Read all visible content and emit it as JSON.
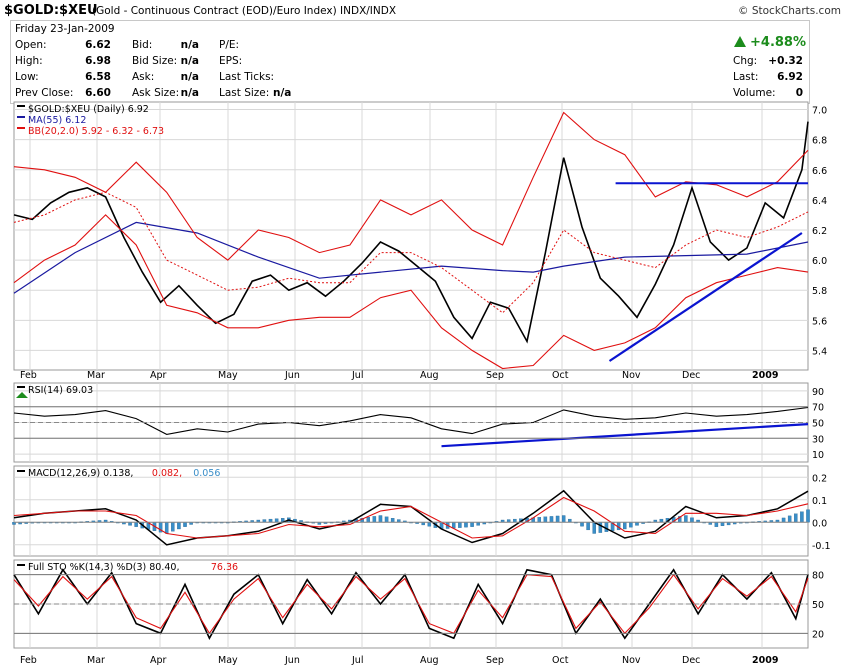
{
  "header": {
    "symbol": "$GOLD:$XEU",
    "description": "(Gold - Continuous Contract (EOD)/Euro Index)  INDX/INDX",
    "source": "© StockCharts.com"
  },
  "quote": {
    "date": "Friday  23-Jan-2009",
    "open_label": "Open:",
    "open": "6.62",
    "high_label": "High:",
    "high": "6.98",
    "low_label": "Low:",
    "low": "6.58",
    "prev_label": "Prev Close:",
    "prev": "6.60",
    "bid_label": "Bid:",
    "bid": "n/a",
    "bidsize_label": "Bid Size:",
    "bidsize": "n/a",
    "ask_label": "Ask:",
    "ask": "n/a",
    "asksize_label": "Ask Size:",
    "asksize": "n/a",
    "pe_label": "P/E:",
    "eps_label": "EPS:",
    "ticks_label": "Last Ticks:",
    "lastsize_label": "Last Size:",
    "lastsize": "n/a",
    "pct": "+4.88%",
    "chg_label": "Chg:",
    "chg": "+0.32",
    "last_label": "Last:",
    "last": "6.92",
    "vol_label": "Volume:",
    "vol": "0"
  },
  "colors": {
    "up": "#1c8c1c",
    "bb": "#e01010",
    "ma": "#1a1aa0",
    "trend": "#0a14d0",
    "rsi": "#000000",
    "hist": "#3a8ec8",
    "grid": "#d8d8d8"
  },
  "chart_data": [
    {
      "type": "line",
      "panel": "price",
      "legend": [
        {
          "text": "$GOLD:$XEU (Daily) 6.92",
          "color": "#000000"
        },
        {
          "text": "MA(55) 6.12",
          "color": "#1a1aa0"
        },
        {
          "text": "BB(20,2.0) 5.92 - 6.32 - 6.73",
          "color": "#e01010"
        }
      ],
      "x_labels": [
        "Feb",
        "Mar",
        "Apr",
        "May",
        "Jun",
        "Jul",
        "Aug",
        "Sep",
        "Oct",
        "Nov",
        "Dec",
        "2009"
      ],
      "y_ticks": [
        "7.0",
        "6.8",
        "6.6",
        "6.4",
        "6.2",
        "6.0",
        "5.8",
        "5.6",
        "5.4"
      ],
      "ylim": [
        5.27,
        7.05
      ],
      "series": [
        {
          "name": "$GOLD:$XEU",
          "x": [
            0,
            6,
            12,
            18,
            24,
            30,
            36,
            42,
            48,
            54,
            60,
            66,
            72,
            78,
            84,
            90,
            96,
            102,
            108,
            114,
            120,
            126,
            132,
            138,
            144,
            150,
            156,
            162,
            168,
            174,
            180,
            186,
            192,
            198,
            204,
            210,
            216,
            222,
            228,
            234,
            240,
            246,
            252,
            258,
            260
          ],
          "values": [
            6.3,
            6.27,
            6.38,
            6.45,
            6.48,
            6.42,
            6.15,
            5.92,
            5.72,
            5.83,
            5.7,
            5.58,
            5.64,
            5.86,
            5.9,
            5.8,
            5.85,
            5.76,
            5.86,
            5.98,
            6.12,
            6.06,
            5.96,
            5.86,
            5.62,
            5.48,
            5.72,
            5.68,
            5.46,
            6.05,
            6.68,
            6.22,
            5.88,
            5.76,
            5.62,
            5.84,
            6.1,
            6.48,
            6.12,
            6.0,
            6.08,
            6.38,
            6.28,
            6.6,
            6.92
          ]
        },
        {
          "name": "MA(55)",
          "x": [
            0,
            20,
            40,
            60,
            80,
            100,
            120,
            140,
            160,
            170,
            180,
            200,
            220,
            240,
            260
          ],
          "values": [
            5.78,
            6.05,
            6.25,
            6.18,
            6.02,
            5.88,
            5.92,
            5.96,
            5.93,
            5.92,
            5.96,
            6.02,
            6.03,
            6.04,
            6.12
          ]
        },
        {
          "name": "BB Upper",
          "x": [
            0,
            10,
            20,
            30,
            40,
            50,
            60,
            70,
            80,
            90,
            100,
            110,
            120,
            130,
            140,
            150,
            160,
            170,
            180,
            190,
            200,
            210,
            220,
            230,
            240,
            250,
            260
          ],
          "values": [
            6.62,
            6.6,
            6.55,
            6.45,
            6.65,
            6.45,
            6.15,
            6.0,
            6.2,
            6.15,
            6.05,
            6.1,
            6.4,
            6.3,
            6.4,
            6.2,
            6.1,
            6.55,
            6.98,
            6.8,
            6.7,
            6.42,
            6.52,
            6.5,
            6.42,
            6.52,
            6.73
          ]
        },
        {
          "name": "BB Middle",
          "x": [
            0,
            10,
            20,
            30,
            40,
            50,
            60,
            70,
            80,
            90,
            100,
            110,
            120,
            130,
            140,
            150,
            160,
            170,
            180,
            190,
            200,
            210,
            220,
            230,
            240,
            250,
            260
          ],
          "values": [
            6.25,
            6.3,
            6.4,
            6.45,
            6.35,
            6.0,
            5.9,
            5.8,
            5.82,
            5.88,
            5.85,
            5.85,
            6.05,
            6.05,
            5.95,
            5.8,
            5.65,
            5.85,
            6.2,
            6.05,
            6.0,
            5.95,
            6.1,
            6.2,
            6.15,
            6.22,
            6.32
          ]
        },
        {
          "name": "BB Lower",
          "x": [
            0,
            10,
            20,
            30,
            40,
            50,
            60,
            70,
            80,
            90,
            100,
            110,
            120,
            130,
            140,
            150,
            160,
            170,
            180,
            190,
            200,
            210,
            220,
            230,
            240,
            250,
            260
          ],
          "values": [
            5.85,
            6.0,
            6.1,
            6.3,
            6.1,
            5.7,
            5.65,
            5.55,
            5.55,
            5.6,
            5.62,
            5.62,
            5.75,
            5.8,
            5.55,
            5.4,
            5.28,
            5.3,
            5.5,
            5.4,
            5.45,
            5.55,
            5.75,
            5.85,
            5.9,
            5.95,
            5.92
          ]
        },
        {
          "name": "Resistance",
          "x": [
            197,
            260
          ],
          "values": [
            6.51,
            6.51
          ]
        },
        {
          "name": "Uptrend",
          "x": [
            195,
            258
          ],
          "values": [
            5.33,
            6.18
          ]
        }
      ]
    },
    {
      "type": "line",
      "panel": "rsi",
      "legend": [
        {
          "text": "RSI(14) 69.03",
          "color": "#000000"
        }
      ],
      "y_ticks": [
        "90",
        "70",
        "50",
        "30",
        "10"
      ],
      "ylim": [
        0,
        100
      ],
      "series": [
        {
          "name": "RSI(14)",
          "x": [
            0,
            10,
            20,
            30,
            40,
            50,
            60,
            70,
            80,
            90,
            100,
            110,
            120,
            130,
            140,
            150,
            160,
            170,
            180,
            190,
            200,
            210,
            220,
            230,
            240,
            250,
            260
          ],
          "values": [
            62,
            58,
            60,
            65,
            55,
            35,
            42,
            38,
            48,
            50,
            46,
            52,
            60,
            56,
            42,
            36,
            48,
            50,
            66,
            58,
            54,
            56,
            62,
            58,
            60,
            64,
            69
          ]
        },
        {
          "name": "RSI trend",
          "x": [
            140,
            260
          ],
          "values": [
            20,
            48
          ]
        }
      ]
    },
    {
      "type": "line",
      "panel": "macd",
      "legend": [
        {
          "text": "MACD(12,26,9) 0.138, ",
          "color": "#000000"
        },
        {
          "text": "0.082, ",
          "color": "#e01010"
        },
        {
          "text": "0.056",
          "color": "#3a8ec8"
        }
      ],
      "y_ticks": [
        "0.2",
        "0.1",
        "0.0",
        "-0.1"
      ],
      "ylim": [
        -0.15,
        0.25
      ],
      "series": [
        {
          "name": "MACD",
          "x": [
            0,
            10,
            20,
            30,
            40,
            50,
            60,
            70,
            80,
            90,
            100,
            110,
            120,
            130,
            140,
            150,
            160,
            170,
            180,
            190,
            200,
            210,
            220,
            230,
            240,
            250,
            260
          ],
          "values": [
            0.02,
            0.04,
            0.05,
            0.06,
            0.01,
            -0.1,
            -0.07,
            -0.06,
            -0.04,
            0.01,
            -0.03,
            0.0,
            0.08,
            0.07,
            -0.03,
            -0.09,
            -0.05,
            0.04,
            0.14,
            0.0,
            -0.07,
            -0.04,
            0.07,
            0.02,
            0.03,
            0.06,
            0.138
          ]
        },
        {
          "name": "Signal",
          "x": [
            0,
            10,
            20,
            30,
            40,
            50,
            60,
            70,
            80,
            90,
            100,
            110,
            120,
            130,
            140,
            150,
            160,
            170,
            180,
            190,
            200,
            210,
            220,
            230,
            240,
            250,
            260
          ],
          "values": [
            0.03,
            0.04,
            0.05,
            0.05,
            0.03,
            -0.05,
            -0.07,
            -0.06,
            -0.05,
            -0.01,
            -0.02,
            -0.01,
            0.05,
            0.07,
            0.0,
            -0.07,
            -0.06,
            0.02,
            0.11,
            0.05,
            -0.04,
            -0.05,
            0.04,
            0.04,
            0.03,
            0.05,
            0.082
          ]
        },
        {
          "name": "Histogram",
          "x": [
            0,
            10,
            20,
            30,
            40,
            50,
            60,
            70,
            80,
            90,
            100,
            110,
            120,
            130,
            140,
            150,
            160,
            170,
            180,
            190,
            200,
            210,
            220,
            230,
            240,
            250,
            260
          ],
          "values": [
            -0.01,
            0.0,
            0.0,
            0.01,
            -0.02,
            -0.05,
            0.0,
            0.0,
            0.01,
            0.02,
            -0.01,
            0.01,
            0.03,
            0.0,
            -0.03,
            -0.02,
            0.01,
            0.02,
            0.03,
            -0.05,
            -0.03,
            0.01,
            0.03,
            -0.02,
            0.0,
            0.01,
            0.056
          ]
        }
      ]
    },
    {
      "type": "line",
      "panel": "sto",
      "legend": [
        {
          "text": "Full STO %K(14,3) %D(3) 80.40, ",
          "color": "#000000"
        },
        {
          "text": "76.36",
          "color": "#e01010"
        }
      ],
      "y_ticks": [
        "80",
        "50",
        "20"
      ],
      "ylim": [
        5,
        95
      ],
      "x_labels": [
        "Feb",
        "Mar",
        "Apr",
        "May",
        "Jun",
        "Jul",
        "Aug",
        "Sep",
        "Oct",
        "Nov",
        "Dec",
        "2009"
      ],
      "series": [
        {
          "name": "%K",
          "x": [
            0,
            8,
            16,
            24,
            32,
            40,
            48,
            56,
            64,
            72,
            80,
            88,
            96,
            104,
            112,
            120,
            128,
            136,
            144,
            152,
            160,
            168,
            176,
            184,
            192,
            200,
            208,
            216,
            224,
            232,
            240,
            248,
            256,
            260
          ],
          "values": [
            80,
            40,
            85,
            50,
            82,
            30,
            20,
            70,
            15,
            60,
            80,
            30,
            75,
            40,
            82,
            50,
            80,
            25,
            15,
            70,
            30,
            85,
            80,
            20,
            55,
            15,
            50,
            85,
            40,
            80,
            55,
            82,
            35,
            80.4
          ]
        },
        {
          "name": "%D",
          "x": [
            0,
            8,
            16,
            24,
            32,
            40,
            48,
            56,
            64,
            72,
            80,
            88,
            96,
            104,
            112,
            120,
            128,
            136,
            144,
            152,
            160,
            168,
            176,
            184,
            192,
            200,
            208,
            216,
            224,
            232,
            240,
            248,
            256,
            260
          ],
          "values": [
            75,
            48,
            78,
            55,
            78,
            36,
            25,
            62,
            20,
            55,
            76,
            36,
            70,
            45,
            78,
            55,
            76,
            30,
            20,
            64,
            36,
            80,
            78,
            25,
            52,
            20,
            46,
            80,
            45,
            76,
            58,
            78,
            42,
            76.36
          ]
        }
      ]
    }
  ]
}
